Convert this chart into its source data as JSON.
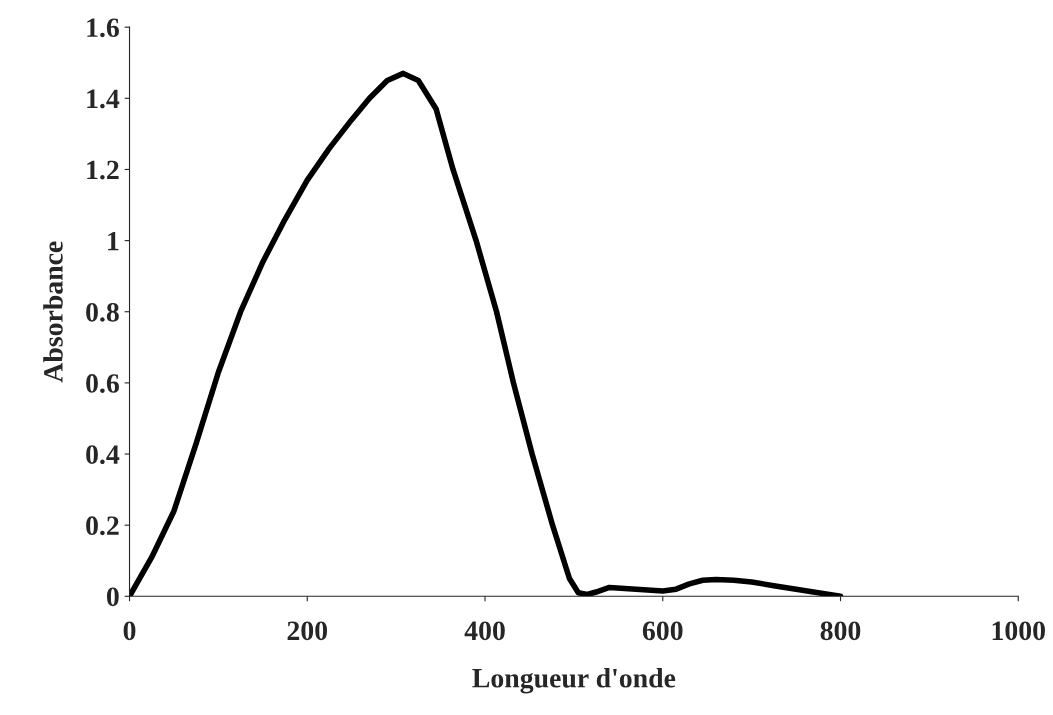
{
  "chart_data": {
    "type": "line",
    "xlabel": "Longueur d'onde",
    "ylabel": "Absorbance",
    "x": [
      0,
      25,
      50,
      75,
      100,
      125,
      150,
      175,
      200,
      225,
      250,
      270,
      290,
      308,
      325,
      345,
      364,
      390,
      413,
      432,
      453,
      476,
      495,
      505,
      515,
      525,
      540,
      570,
      600,
      615,
      630,
      645,
      660,
      680,
      700,
      725,
      750,
      775,
      800
    ],
    "series": [
      {
        "color": "#000000",
        "values": [
          0,
          0.11,
          0.24,
          0.43,
          0.63,
          0.8,
          0.94,
          1.06,
          1.17,
          1.26,
          1.34,
          1.4,
          1.45,
          1.47,
          1.45,
          1.37,
          1.2,
          1.0,
          0.8,
          0.6,
          0.4,
          0.2,
          0.05,
          0.01,
          0.005,
          0.012,
          0.025,
          0.02,
          0.015,
          0.02,
          0.035,
          0.045,
          0.047,
          0.045,
          0.04,
          0.03,
          0.02,
          0.01,
          0
        ]
      }
    ],
    "xlim": [
      0,
      1000
    ],
    "xticks": [
      0,
      200,
      400,
      600,
      800,
      1000
    ],
    "ylim": [
      0,
      1.6
    ],
    "yticks": [
      0,
      0.2,
      0.4,
      0.6,
      0.8,
      1,
      1.2,
      1.4,
      1.6
    ],
    "grid": false,
    "legend": false,
    "marker": "none",
    "line_style": "solid"
  }
}
